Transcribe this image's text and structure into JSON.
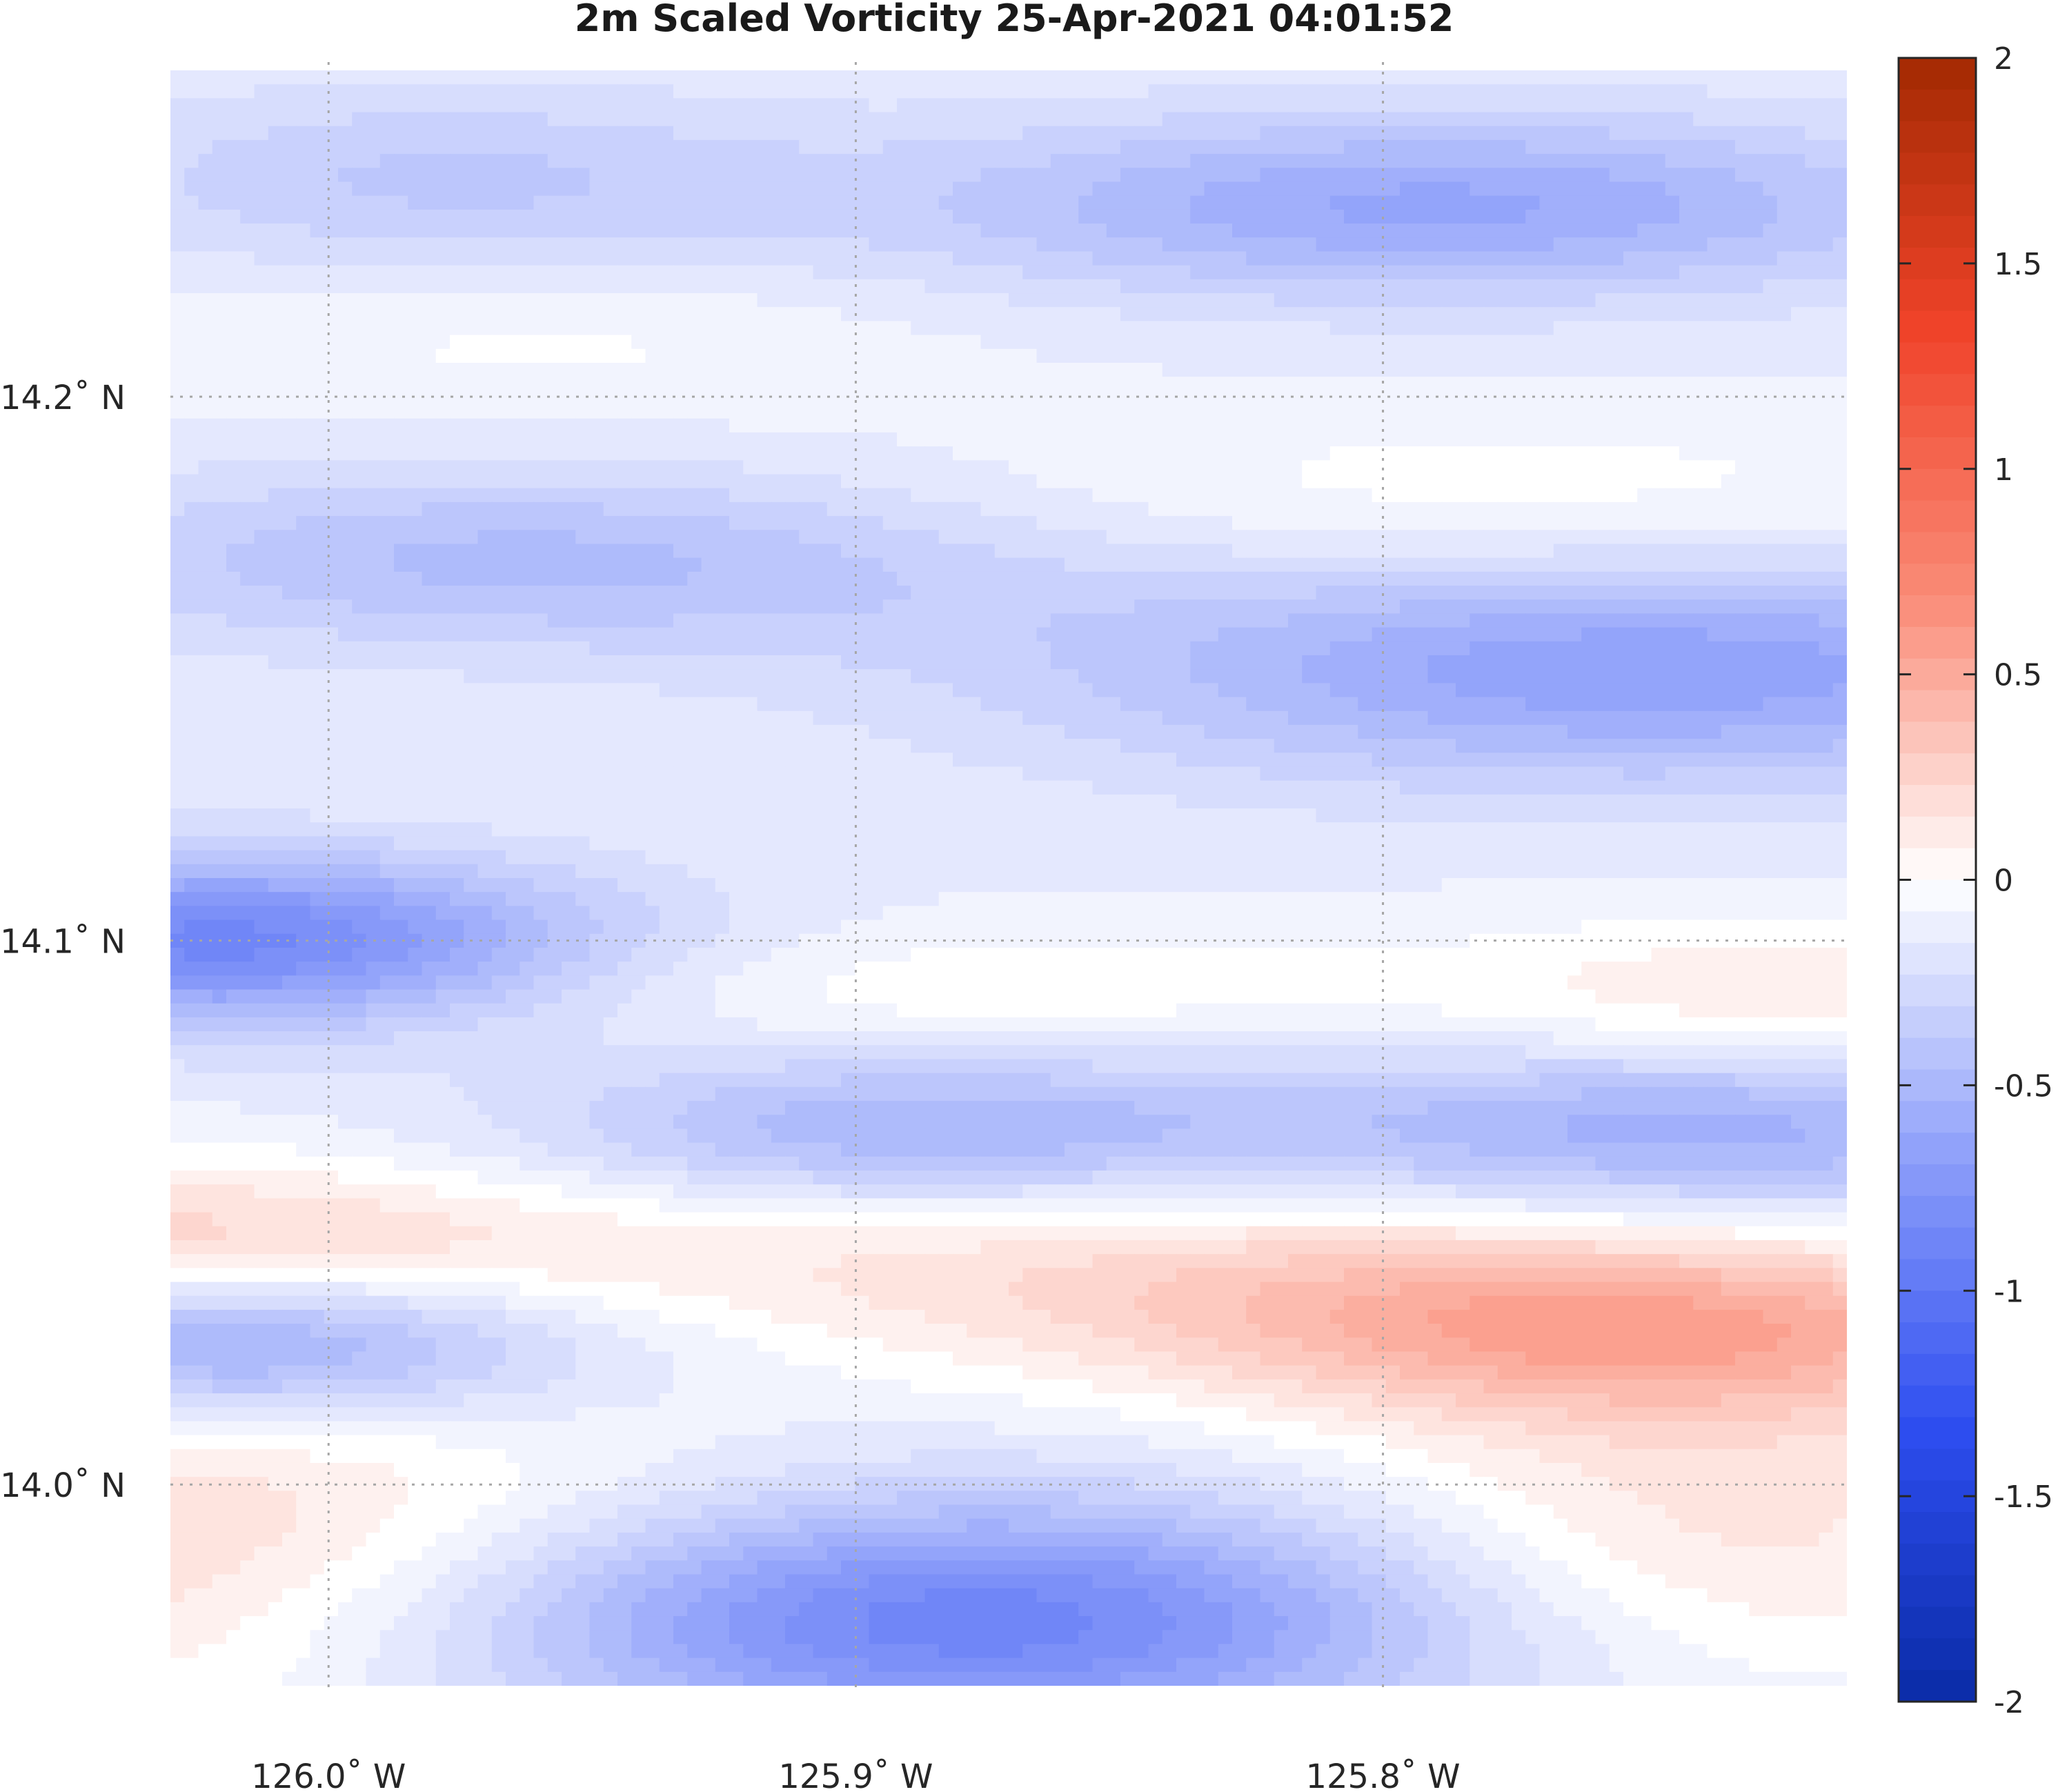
{
  "chart_data": {
    "type": "heatmap",
    "title": "2m Scaled Vorticity  25-Apr-2021 04:01:52",
    "xlabel": "",
    "ylabel": "",
    "x_ticks": [
      {
        "value": -126.0,
        "label": "126.0˚ W"
      },
      {
        "value": -125.9,
        "label": "125.9˚ W"
      },
      {
        "value": -125.8,
        "label": "125.8˚ W"
      }
    ],
    "y_ticks": [
      {
        "value": 14.2,
        "label": "14.2˚ N"
      },
      {
        "value": 14.1,
        "label": "14.1˚ N"
      },
      {
        "value": 14.0,
        "label": "14.0˚ N"
      }
    ],
    "xlim": [
      -126.03,
      -125.712
    ],
    "ylim": [
      13.963,
      14.26
    ],
    "grid": true,
    "colorbar": {
      "range": [
        -2,
        2
      ],
      "ticks": [
        {
          "value": 2,
          "label": "2"
        },
        {
          "value": 1.5,
          "label": "1.5"
        },
        {
          "value": 1,
          "label": "1"
        },
        {
          "value": 0.5,
          "label": "0.5"
        },
        {
          "value": 0,
          "label": "0"
        },
        {
          "value": -0.5,
          "label": "-0.5"
        },
        {
          "value": -1,
          "label": "-1"
        },
        {
          "value": -1.5,
          "label": "-1.5"
        },
        {
          "value": -2,
          "label": "-2"
        }
      ],
      "colors": [
        "#0a2ba6",
        "#2e4ef0",
        "#8fa0fa",
        "#ffffff",
        "#fa8e7a",
        "#f0432a",
        "#a32a02"
      ]
    },
    "features": [
      {
        "lon": -126.03,
        "lat": 14.04,
        "value": 0.55,
        "slon": 0.06,
        "slat": 0.012
      },
      {
        "lon": -125.75,
        "lat": 14.028,
        "value": 0.6,
        "slon": 0.065,
        "slat": 0.012
      },
      {
        "lon": -125.85,
        "lat": 14.04,
        "value": 0.25,
        "slon": 0.08,
        "slat": 0.012
      },
      {
        "lon": -126.03,
        "lat": 13.99,
        "value": 0.35,
        "slon": 0.07,
        "slat": 0.025
      },
      {
        "lon": -125.74,
        "lat": 13.99,
        "value": 0.3,
        "slon": 0.05,
        "slat": 0.02
      },
      {
        "lon": -125.72,
        "lat": 14.09,
        "value": 0.25,
        "slon": 0.05,
        "slat": 0.01
      },
      {
        "lon": -125.78,
        "lat": 14.18,
        "value": 0.15,
        "slon": 0.08,
        "slat": 0.012
      },
      {
        "lon": -125.88,
        "lat": 14.091,
        "value": 0.15,
        "slon": 0.055,
        "slat": 0.008
      },
      {
        "lon": -125.96,
        "lat": 14.21,
        "value": 0.1,
        "slon": 0.05,
        "slat": 0.01
      },
      {
        "lon": -126.02,
        "lat": 14.1,
        "value": -0.75,
        "slon": 0.05,
        "slat": 0.011
      },
      {
        "lon": -126.02,
        "lat": 14.028,
        "value": -0.8,
        "slon": 0.05,
        "slat": 0.011
      },
      {
        "lon": -125.88,
        "lat": 13.975,
        "value": -0.8,
        "slon": 0.07,
        "slat": 0.016
      },
      {
        "lon": -125.75,
        "lat": 14.15,
        "value": -0.55,
        "slon": 0.08,
        "slat": 0.015
      },
      {
        "lon": -125.79,
        "lat": 14.235,
        "value": -0.5,
        "slon": 0.07,
        "slat": 0.012
      },
      {
        "lon": -125.74,
        "lat": 14.065,
        "value": -0.45,
        "slon": 0.06,
        "slat": 0.011
      },
      {
        "lon": -125.89,
        "lat": 14.065,
        "value": -0.4,
        "slon": 0.05,
        "slat": 0.01
      },
      {
        "lon": -125.96,
        "lat": 14.17,
        "value": -0.35,
        "slon": 0.07,
        "slat": 0.012
      },
      {
        "lon": -125.98,
        "lat": 14.24,
        "value": -0.25,
        "slon": 0.05,
        "slat": 0.012
      }
    ]
  }
}
